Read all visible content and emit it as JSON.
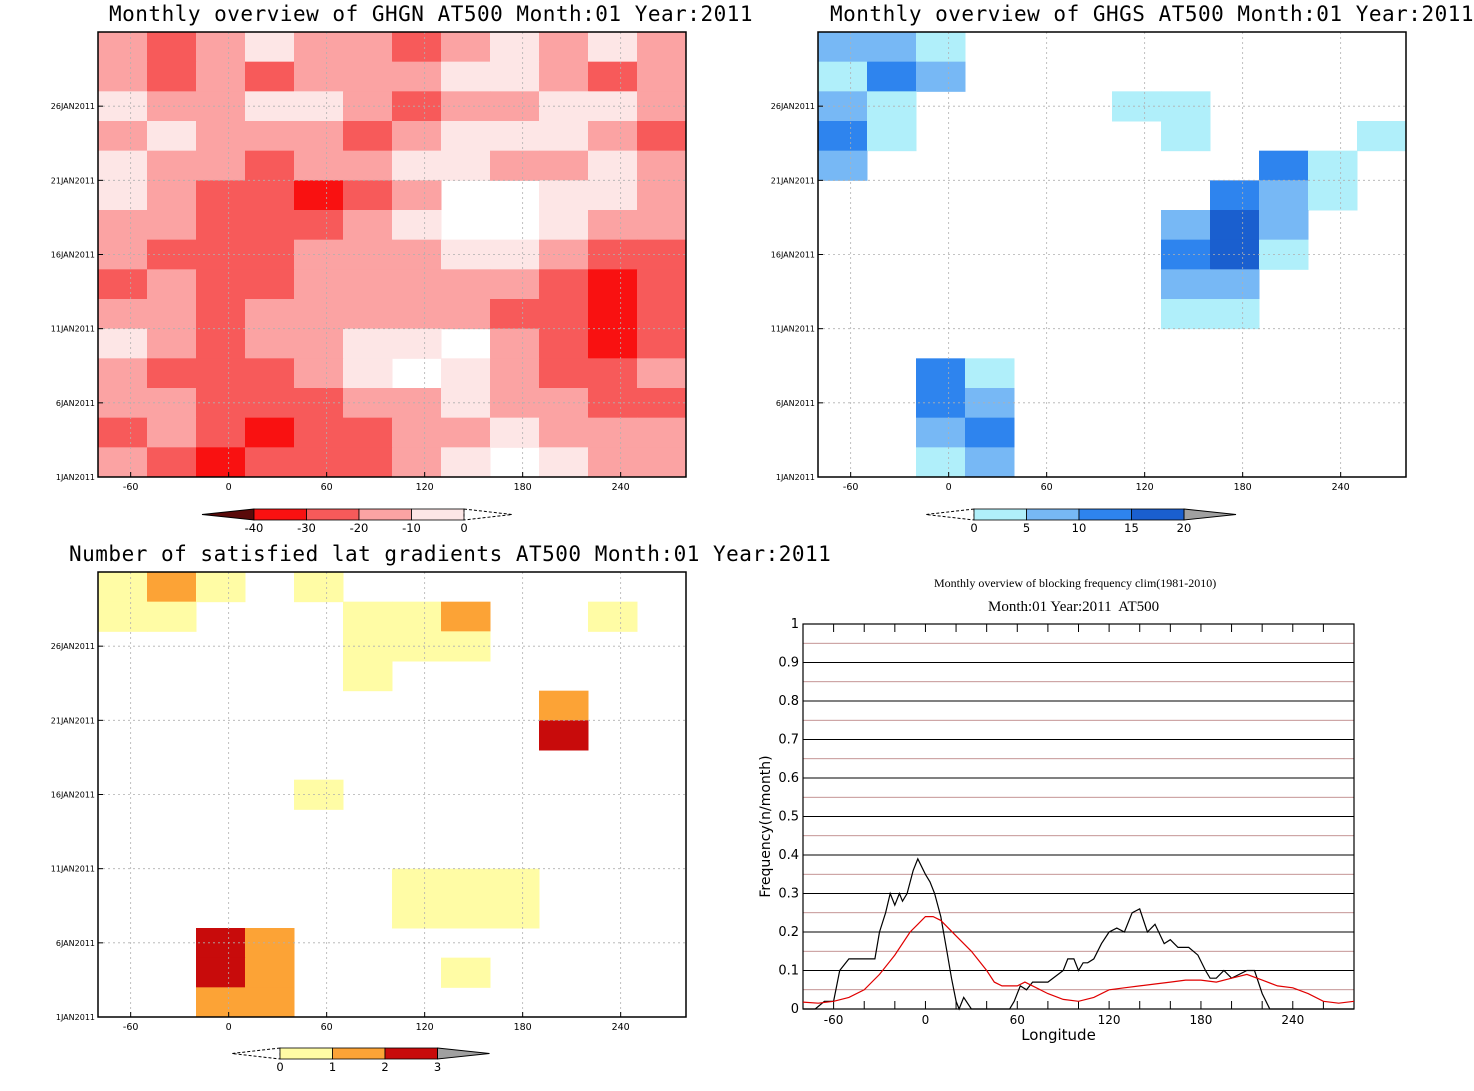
{
  "palettes": {
    "ghgn_fill": [
      "#ffffff",
      "#fde6e6",
      "#fba3a3",
      "#f75a5a",
      "#f91111"
    ],
    "ghgs_fill": [
      "#ffffff",
      "#b0effa",
      "#77b8f5",
      "#2e84ee",
      "#1a5fcf"
    ],
    "lat_fill": [
      "#ffffff",
      "#fffca5",
      "#fca336",
      "#c80b0b"
    ]
  },
  "chart_data": [
    {
      "id": "ghgn",
      "type": "heatmap",
      "title": "Monthly overview of GHGN AT500 Month:01 Year:2011",
      "x_ticks": [
        "-60",
        "0",
        "60",
        "120",
        "180",
        "240"
      ],
      "x_tick_values": [
        -60,
        0,
        60,
        120,
        180,
        240
      ],
      "y_ticks": [
        "1JAN2011",
        "6JAN2011",
        "11JAN2011",
        "16JAN2011",
        "21JAN2011",
        "26JAN2011"
      ],
      "y_tick_values": [
        1,
        6,
        11,
        16,
        21,
        26
      ],
      "xlim": [
        -80,
        280
      ],
      "ylim": [
        1,
        31
      ],
      "grid": true,
      "colorbar": {
        "labels": [
          "-40",
          "-30",
          "-20",
          "-10",
          "0"
        ],
        "colors": [
          "#5a0a0a",
          "#f91111",
          "#f75a5a",
          "#fba3a3",
          "#fde6e6"
        ],
        "left_end": "#5a0a0a",
        "right_end": "open"
      },
      "levels_legend": "classes 0..4 = ≥0, -10..0, -20..-10, -30..-20, < -30",
      "grid_cols": 12,
      "grid_rows": 15,
      "values": [
        [
          2,
          3,
          2,
          1,
          2,
          2,
          3,
          2,
          1,
          2,
          1,
          2
        ],
        [
          2,
          3,
          2,
          3,
          2,
          2,
          2,
          1,
          1,
          2,
          3,
          2
        ],
        [
          1,
          2,
          2,
          1,
          1,
          2,
          3,
          2,
          2,
          1,
          1,
          2
        ],
        [
          2,
          1,
          2,
          2,
          2,
          3,
          2,
          1,
          1,
          1,
          2,
          3
        ],
        [
          1,
          2,
          2,
          3,
          2,
          2,
          1,
          1,
          2,
          2,
          1,
          2
        ],
        [
          1,
          2,
          3,
          3,
          4,
          3,
          2,
          0,
          0,
          1,
          1,
          2
        ],
        [
          2,
          2,
          3,
          3,
          3,
          2,
          1,
          0,
          0,
          1,
          2,
          2
        ],
        [
          2,
          3,
          3,
          3,
          2,
          2,
          2,
          1,
          1,
          2,
          3,
          3
        ],
        [
          3,
          2,
          3,
          3,
          2,
          2,
          2,
          2,
          2,
          3,
          4,
          3
        ],
        [
          2,
          2,
          3,
          2,
          2,
          2,
          2,
          2,
          3,
          3,
          4,
          3
        ],
        [
          1,
          2,
          3,
          2,
          2,
          1,
          1,
          0,
          2,
          3,
          4,
          3
        ],
        [
          2,
          3,
          3,
          3,
          2,
          1,
          0,
          1,
          2,
          3,
          3,
          2
        ],
        [
          2,
          2,
          3,
          3,
          3,
          2,
          2,
          1,
          2,
          2,
          3,
          3
        ],
        [
          3,
          2,
          3,
          4,
          3,
          3,
          2,
          2,
          1,
          2,
          2,
          2
        ],
        [
          2,
          3,
          4,
          3,
          3,
          3,
          2,
          1,
          0,
          1,
          2,
          2
        ]
      ]
    },
    {
      "id": "ghgs",
      "type": "heatmap",
      "title": "Monthly overview of GHGS AT500 Month:01 Year:2011",
      "x_ticks": [
        "-60",
        "0",
        "60",
        "120",
        "180",
        "240"
      ],
      "x_tick_values": [
        -60,
        0,
        60,
        120,
        180,
        240
      ],
      "y_ticks": [
        "1JAN2011",
        "6JAN2011",
        "11JAN2011",
        "16JAN2011",
        "21JAN2011",
        "26JAN2011"
      ],
      "y_tick_values": [
        1,
        6,
        11,
        16,
        21,
        26
      ],
      "xlim": [
        -80,
        280
      ],
      "ylim": [
        1,
        31
      ],
      "grid": true,
      "colorbar": {
        "labels": [
          "0",
          "5",
          "10",
          "15",
          "20"
        ],
        "colors": [
          "#b0effa",
          "#77b8f5",
          "#2e84ee",
          "#1a5fcf"
        ],
        "left_end": "open",
        "right_end": "#a0a0a0"
      },
      "grid_cols": 12,
      "grid_rows": 15,
      "values": [
        [
          2,
          2,
          1,
          0,
          0,
          0,
          0,
          0,
          0,
          0,
          0,
          0
        ],
        [
          1,
          3,
          2,
          0,
          0,
          0,
          0,
          0,
          0,
          0,
          0,
          0
        ],
        [
          2,
          1,
          0,
          0,
          0,
          0,
          1,
          1,
          0,
          0,
          0,
          0
        ],
        [
          3,
          1,
          0,
          0,
          0,
          0,
          0,
          1,
          0,
          0,
          0,
          1
        ],
        [
          2,
          0,
          0,
          0,
          0,
          0,
          0,
          0,
          0,
          3,
          1,
          0
        ],
        [
          0,
          0,
          0,
          0,
          0,
          0,
          0,
          0,
          3,
          2,
          1,
          0
        ],
        [
          0,
          0,
          0,
          0,
          0,
          0,
          0,
          2,
          4,
          2,
          0,
          0
        ],
        [
          0,
          0,
          0,
          0,
          0,
          0,
          0,
          3,
          4,
          1,
          0,
          0
        ],
        [
          0,
          0,
          0,
          0,
          0,
          0,
          0,
          2,
          2,
          0,
          0,
          0
        ],
        [
          0,
          0,
          0,
          0,
          0,
          0,
          0,
          1,
          1,
          0,
          0,
          0
        ],
        [
          0,
          0,
          0,
          0,
          0,
          0,
          0,
          0,
          0,
          0,
          0,
          0
        ],
        [
          0,
          0,
          3,
          1,
          0,
          0,
          0,
          0,
          0,
          0,
          0,
          0
        ],
        [
          0,
          0,
          3,
          2,
          0,
          0,
          0,
          0,
          0,
          0,
          0,
          0
        ],
        [
          0,
          0,
          2,
          3,
          0,
          0,
          0,
          0,
          0,
          0,
          0,
          0
        ],
        [
          0,
          0,
          1,
          2,
          0,
          0,
          0,
          0,
          0,
          0,
          0,
          0
        ]
      ]
    },
    {
      "id": "lat",
      "type": "heatmap",
      "title": "Number of satisfied lat gradients AT500 Month:01 Year:2011",
      "x_ticks": [
        "-60",
        "0",
        "60",
        "120",
        "180",
        "240"
      ],
      "x_tick_values": [
        -60,
        0,
        60,
        120,
        180,
        240
      ],
      "y_ticks": [
        "1JAN2011",
        "6JAN2011",
        "11JAN2011",
        "16JAN2011",
        "21JAN2011",
        "26JAN2011"
      ],
      "y_tick_values": [
        1,
        6,
        11,
        16,
        21,
        26
      ],
      "xlim": [
        -80,
        280
      ],
      "ylim": [
        1,
        31
      ],
      "grid": true,
      "colorbar": {
        "labels": [
          "0",
          "1",
          "2",
          "3"
        ],
        "colors": [
          "#fffca5",
          "#fca336",
          "#c80b0b"
        ],
        "left_end": "open",
        "right_end": "#a0a0a0"
      },
      "grid_cols": 12,
      "grid_rows": 15,
      "values": [
        [
          1,
          2,
          1,
          0,
          1,
          0,
          0,
          0,
          0,
          0,
          0,
          0
        ],
        [
          1,
          1,
          0,
          0,
          0,
          1,
          1,
          2,
          0,
          0,
          1,
          0
        ],
        [
          0,
          0,
          0,
          0,
          0,
          1,
          1,
          1,
          0,
          0,
          0,
          0
        ],
        [
          0,
          0,
          0,
          0,
          0,
          1,
          0,
          0,
          0,
          0,
          0,
          0
        ],
        [
          0,
          0,
          0,
          0,
          0,
          0,
          0,
          0,
          0,
          2,
          0,
          0
        ],
        [
          0,
          0,
          0,
          0,
          0,
          0,
          0,
          0,
          0,
          3,
          0,
          0
        ],
        [
          0,
          0,
          0,
          0,
          0,
          0,
          0,
          0,
          0,
          0,
          0,
          0
        ],
        [
          0,
          0,
          0,
          0,
          1,
          0,
          0,
          0,
          0,
          0,
          0,
          0
        ],
        [
          0,
          0,
          0,
          0,
          0,
          0,
          0,
          0,
          0,
          0,
          0,
          0
        ],
        [
          0,
          0,
          0,
          0,
          0,
          0,
          0,
          0,
          0,
          0,
          0,
          0
        ],
        [
          0,
          0,
          0,
          0,
          0,
          0,
          1,
          1,
          1,
          0,
          0,
          0
        ],
        [
          0,
          0,
          0,
          0,
          0,
          0,
          1,
          1,
          1,
          0,
          0,
          0
        ],
        [
          0,
          0,
          3,
          2,
          0,
          0,
          0,
          0,
          0,
          0,
          0,
          0
        ],
        [
          0,
          0,
          3,
          2,
          0,
          0,
          0,
          1,
          0,
          0,
          0,
          0
        ],
        [
          0,
          0,
          2,
          2,
          0,
          0,
          0,
          0,
          0,
          0,
          0,
          0
        ]
      ]
    },
    {
      "id": "freq",
      "type": "line",
      "title": "Monthly overview of blocking frequency clim(1981-2010)",
      "subtitle": "Month:01 Year:2011  AT500",
      "xlabel": "Longitude",
      "ylabel": "Frequency(n/month)",
      "xlim": [
        -80,
        280
      ],
      "ylim": [
        0,
        1
      ],
      "x_ticks": [
        "-60",
        "0",
        "60",
        "120",
        "180",
        "240"
      ],
      "x_tick_values": [
        -60,
        0,
        60,
        120,
        180,
        240
      ],
      "y_ticks": [
        "0",
        "0.1",
        "0.2",
        "0.3",
        "0.4",
        "0.5",
        "0.6",
        "0.7",
        "0.8",
        "0.9",
        "1"
      ],
      "y_tick_values": [
        0,
        0.1,
        0.2,
        0.3,
        0.4,
        0.5,
        0.6,
        0.7,
        0.8,
        0.9,
        1
      ],
      "grid": true,
      "colors": {
        "black_series": "#000000",
        "red_series": "#e00000",
        "major_grid": "#000000",
        "minor_grid": "#b07070"
      },
      "series": [
        {
          "color": "#000000",
          "x": [
            -80,
            -72,
            -66,
            -63,
            -60,
            -56,
            -50,
            -40,
            -33,
            -30,
            -26,
            -23,
            -20,
            -17,
            -15,
            -12,
            -8,
            -5,
            0,
            3,
            6,
            10,
            14,
            17,
            20,
            22,
            25,
            30,
            40,
            55,
            58,
            62,
            66,
            70,
            80,
            90,
            93,
            97,
            100,
            103,
            106,
            110,
            115,
            120,
            125,
            130,
            135,
            140,
            145,
            150,
            156,
            160,
            165,
            172,
            178,
            183,
            186,
            190,
            195,
            200,
            205,
            210,
            215,
            220,
            225,
            240,
            280
          ],
          "y": [
            0,
            0,
            0.02,
            0.02,
            0.02,
            0.1,
            0.13,
            0.13,
            0.13,
            0.2,
            0.25,
            0.3,
            0.27,
            0.3,
            0.28,
            0.3,
            0.36,
            0.39,
            0.35,
            0.33,
            0.3,
            0.24,
            0.15,
            0.08,
            0.02,
            0.0,
            0.03,
            0.0,
            0.0,
            0.0,
            0.02,
            0.06,
            0.05,
            0.07,
            0.07,
            0.1,
            0.13,
            0.13,
            0.1,
            0.12,
            0.12,
            0.13,
            0.17,
            0.2,
            0.21,
            0.2,
            0.25,
            0.26,
            0.2,
            0.22,
            0.17,
            0.18,
            0.16,
            0.16,
            0.14,
            0.1,
            0.08,
            0.08,
            0.1,
            0.08,
            0.09,
            0.1,
            0.1,
            0.04,
            0.0,
            0.0,
            0.0
          ]
        },
        {
          "color": "#e00000",
          "x": [
            -80,
            -70,
            -60,
            -50,
            -40,
            -30,
            -20,
            -10,
            -5,
            0,
            5,
            10,
            20,
            30,
            40,
            45,
            50,
            60,
            65,
            70,
            80,
            90,
            100,
            110,
            120,
            130,
            140,
            150,
            160,
            170,
            180,
            190,
            200,
            210,
            220,
            230,
            240,
            250,
            260,
            270,
            280
          ],
          "y": [
            0.018,
            0.015,
            0.02,
            0.03,
            0.05,
            0.09,
            0.14,
            0.2,
            0.22,
            0.24,
            0.24,
            0.23,
            0.19,
            0.15,
            0.1,
            0.07,
            0.06,
            0.06,
            0.07,
            0.06,
            0.04,
            0.025,
            0.02,
            0.03,
            0.05,
            0.055,
            0.06,
            0.065,
            0.07,
            0.075,
            0.075,
            0.07,
            0.08,
            0.09,
            0.075,
            0.06,
            0.055,
            0.04,
            0.02,
            0.015,
            0.02
          ]
        }
      ]
    }
  ]
}
